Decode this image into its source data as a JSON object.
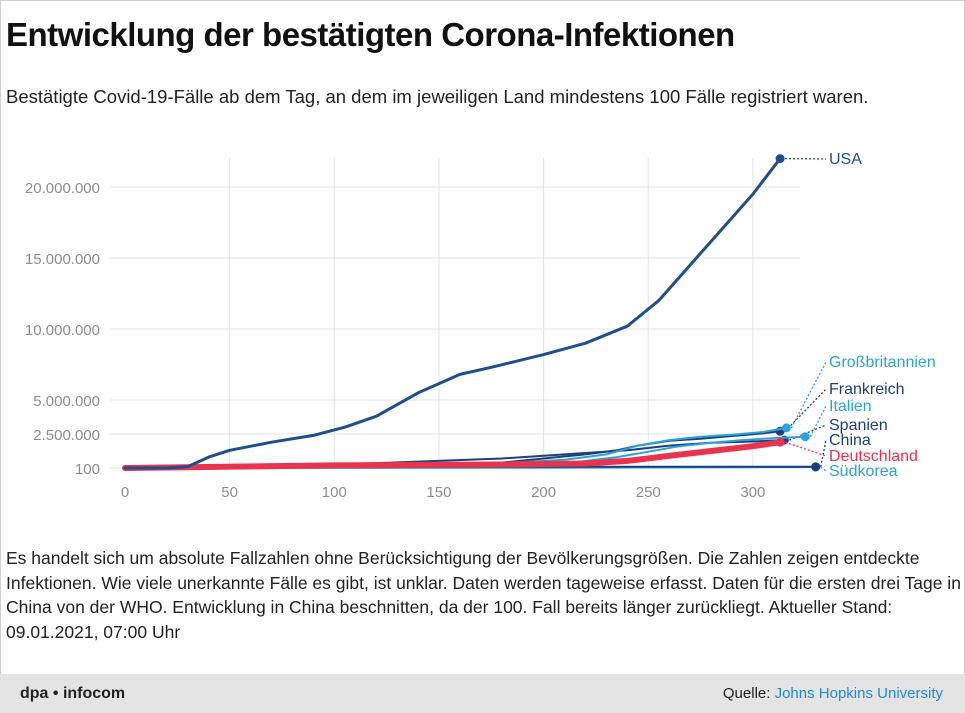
{
  "title": "Entwicklung der bestätigten Corona-Infektionen",
  "subtitle": "Bestätigte Covid-19-Fälle ab dem Tag, an dem im jeweiligen Land mindestens 100 Fälle registriert waren.",
  "note": "Es handelt sich um absolute Fallzahlen ohne Berücksichtigung der Bevölkerungsgrößen. Die Zahlen zeigen entdeckte Infektionen. Wie viele unerkannte Fälle es gibt, ist unklar. Daten werden tageweise erfasst. Daten für die ersten drei Tage in China von der WHO. Entwicklung in China beschnitten, da der 100. Fall bereits länger zurückliegt. Aktueller Stand: 09.01.2021, 07:00 Uhr",
  "footer": {
    "brand": "dpa • infocom",
    "source_label": "Quelle: ",
    "source_name": "Johns Hopkins University"
  },
  "colors": {
    "usa": "#1f4e8c",
    "grossbritannien": "#2aa3dc",
    "frankreich": "#1f3f7a",
    "italien": "#2aa3dc",
    "spanien": "#1f3f7a",
    "china": "#1f3f7a",
    "deutschland": "#e8344e",
    "suedkorea": "#2aa3dc",
    "grid": "#e3e3e3",
    "axis_text": "#8c8c8c"
  },
  "chart_data": {
    "type": "line",
    "x_ticks": [
      0,
      50,
      100,
      150,
      200,
      250,
      300
    ],
    "y_ticks": [
      100,
      2500000,
      5000000,
      10000000,
      15000000,
      20000000
    ],
    "y_tick_labels": [
      "100",
      "2.500.000",
      "5.000.000",
      "10.000.000",
      "15.000.000",
      "20.000.000"
    ],
    "xlim": [
      0,
      330
    ],
    "grid": true,
    "series": [
      {
        "name": "USA",
        "color_key": "usa",
        "width": 3,
        "points": [
          [
            0,
            100
          ],
          [
            20,
            1000
          ],
          [
            30,
            100000
          ],
          [
            40,
            800000
          ],
          [
            50,
            1300000
          ],
          [
            70,
            1900000
          ],
          [
            90,
            2400000
          ],
          [
            105,
            3000000
          ],
          [
            120,
            3800000
          ],
          [
            140,
            5500000
          ],
          [
            160,
            6800000
          ],
          [
            175,
            7300000
          ],
          [
            200,
            8200000
          ],
          [
            220,
            9000000
          ],
          [
            240,
            10200000
          ],
          [
            255,
            12000000
          ],
          [
            270,
            14500000
          ],
          [
            285,
            17000000
          ],
          [
            300,
            19500000
          ],
          [
            313,
            22000000
          ]
        ]
      },
      {
        "name": "Großbritannien",
        "color_key": "grossbritannien",
        "width": 2,
        "points": [
          [
            0,
            100
          ],
          [
            100,
            150000
          ],
          [
            180,
            350000
          ],
          [
            210,
            600000
          ],
          [
            230,
            1000000
          ],
          [
            245,
            1650000
          ],
          [
            260,
            2050000
          ],
          [
            275,
            2300000
          ],
          [
            290,
            2450000
          ],
          [
            305,
            2650000
          ],
          [
            316,
            2950000
          ]
        ]
      },
      {
        "name": "Frankreich",
        "color_key": "frankreich",
        "width": 2,
        "points": [
          [
            0,
            100
          ],
          [
            100,
            150000
          ],
          [
            180,
            400000
          ],
          [
            200,
            700000
          ],
          [
            220,
            1000000
          ],
          [
            235,
            1300000
          ],
          [
            245,
            1650000
          ],
          [
            260,
            2000000
          ],
          [
            275,
            2150000
          ],
          [
            290,
            2350000
          ],
          [
            305,
            2550000
          ],
          [
            313,
            2700000
          ]
        ]
      },
      {
        "name": "Italien",
        "color_key": "italien",
        "width": 2,
        "points": [
          [
            0,
            100
          ],
          [
            100,
            230000
          ],
          [
            190,
            280000
          ],
          [
            215,
            420000
          ],
          [
            235,
            800000
          ],
          [
            250,
            1200000
          ],
          [
            265,
            1600000
          ],
          [
            280,
            1850000
          ],
          [
            295,
            2050000
          ],
          [
            310,
            2200000
          ],
          [
            325,
            2300000
          ]
        ]
      },
      {
        "name": "Spanien",
        "color_key": "spanien",
        "width": 2,
        "points": [
          [
            0,
            100
          ],
          [
            100,
            240000
          ],
          [
            180,
            700000
          ],
          [
            200,
            900000
          ],
          [
            220,
            1100000
          ],
          [
            240,
            1300000
          ],
          [
            260,
            1650000
          ],
          [
            280,
            1850000
          ],
          [
            300,
            1950000
          ],
          [
            315,
            2050000
          ]
        ]
      },
      {
        "name": "China",
        "color_key": "china",
        "width": 2,
        "points": [
          [
            0,
            100
          ],
          [
            50,
            80000
          ],
          [
            330,
            96000
          ]
        ]
      },
      {
        "name": "Deutschland",
        "color_key": "deutschland",
        "width": 6,
        "points": [
          [
            0,
            100
          ],
          [
            100,
            190000
          ],
          [
            180,
            260000
          ],
          [
            220,
            330000
          ],
          [
            240,
            520000
          ],
          [
            260,
            900000
          ],
          [
            280,
            1250000
          ],
          [
            300,
            1600000
          ],
          [
            313,
            1900000
          ]
        ]
      },
      {
        "name": "Südkorea",
        "color_key": "suedkorea",
        "width": 2,
        "points": [
          [
            0,
            100
          ],
          [
            100,
            11000
          ],
          [
            200,
            24000
          ],
          [
            300,
            60000
          ],
          [
            330,
            69000
          ]
        ]
      }
    ],
    "labels": [
      {
        "series": "USA",
        "text": "USA",
        "color_key": "usa"
      },
      {
        "series": "Großbritannien",
        "text": "Großbritannien",
        "color_key": "grossbritannien"
      },
      {
        "series": "Frankreich",
        "text": "Frankreich",
        "color_key": "frankreich"
      },
      {
        "series": "Italien",
        "text": "Italien",
        "color_key": "italien"
      },
      {
        "series": "Spanien",
        "text": "Spanien",
        "color_key": "spanien"
      },
      {
        "series": "China",
        "text": "China",
        "color_key": "china"
      },
      {
        "series": "Deutschland",
        "text": "Deutschland",
        "color_key": "deutschland"
      },
      {
        "series": "Südkorea",
        "text": "Südkorea",
        "color_key": "suedkorea"
      }
    ]
  }
}
